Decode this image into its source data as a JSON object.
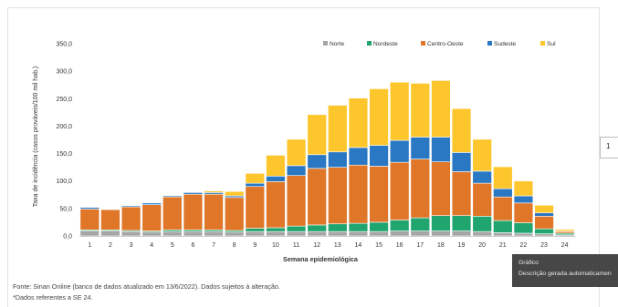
{
  "chart_data": {
    "type": "bar",
    "stacked": true,
    "xlabel": "Semana epidemiológica",
    "ylabel": "Taxa de incidência (casos prováveis/100 mil hab.)",
    "ylim": [
      0,
      350
    ],
    "yticks": [
      "0,0",
      "50,0",
      "100,0",
      "150,0",
      "200,0",
      "250,0",
      "300,0",
      "350,0"
    ],
    "grid": false,
    "legend_position": "top-right",
    "categories": [
      "1",
      "2",
      "3",
      "4",
      "5",
      "6",
      "7",
      "8",
      "9",
      "10",
      "11",
      "12",
      "13",
      "14",
      "15",
      "16",
      "17",
      "18",
      "19",
      "20",
      "21",
      "22",
      "23",
      "24"
    ],
    "series": [
      {
        "name": "Norte",
        "color": "#a6a6a6",
        "values": [
          9,
          9,
          8,
          7,
          8,
          8,
          8,
          7,
          8,
          8,
          8,
          8,
          8,
          8,
          8,
          9,
          9,
          9,
          9,
          8,
          6,
          5,
          4,
          2
        ]
      },
      {
        "name": "Nordeste",
        "color": "#21a56f",
        "values": [
          2,
          2,
          2,
          2,
          3,
          3,
          3,
          3,
          6,
          7,
          10,
          12,
          14,
          15,
          17,
          20,
          24,
          28,
          28,
          28,
          22,
          19,
          9,
          3
        ]
      },
      {
        "name": "Centro-Oeste",
        "color": "#e07628",
        "values": [
          38,
          37,
          43,
          48,
          60,
          65,
          65,
          60,
          76,
          84,
          92,
          103,
          103,
          106,
          102,
          105,
          107,
          98,
          80,
          60,
          43,
          36,
          23,
          3
        ]
      },
      {
        "name": "Sudeste",
        "color": "#2a78c4",
        "values": [
          3,
          1,
          2,
          3,
          2,
          3,
          3,
          3,
          6,
          10,
          18,
          25,
          28,
          32,
          38,
          40,
          40,
          45,
          35,
          22,
          15,
          13,
          6,
          1
        ]
      },
      {
        "name": "Sul",
        "color": "#fdc62c",
        "values": [
          0,
          0,
          0,
          0,
          0,
          0,
          3,
          8,
          18,
          38,
          48,
          73,
          85,
          90,
          103,
          106,
          98,
          103,
          80,
          58,
          40,
          27,
          14,
          3
        ]
      }
    ]
  },
  "footnotes": {
    "source": "Fonte: Sinan Online (banco de dados atualizado em 13/6/2022). Dados sujeitos à alteração.",
    "note": "*Dados referentes a SE 24."
  },
  "side_marker": "1",
  "tooltip": {
    "title": "Gráfico",
    "description": "Descrição gerada automaticamen"
  }
}
